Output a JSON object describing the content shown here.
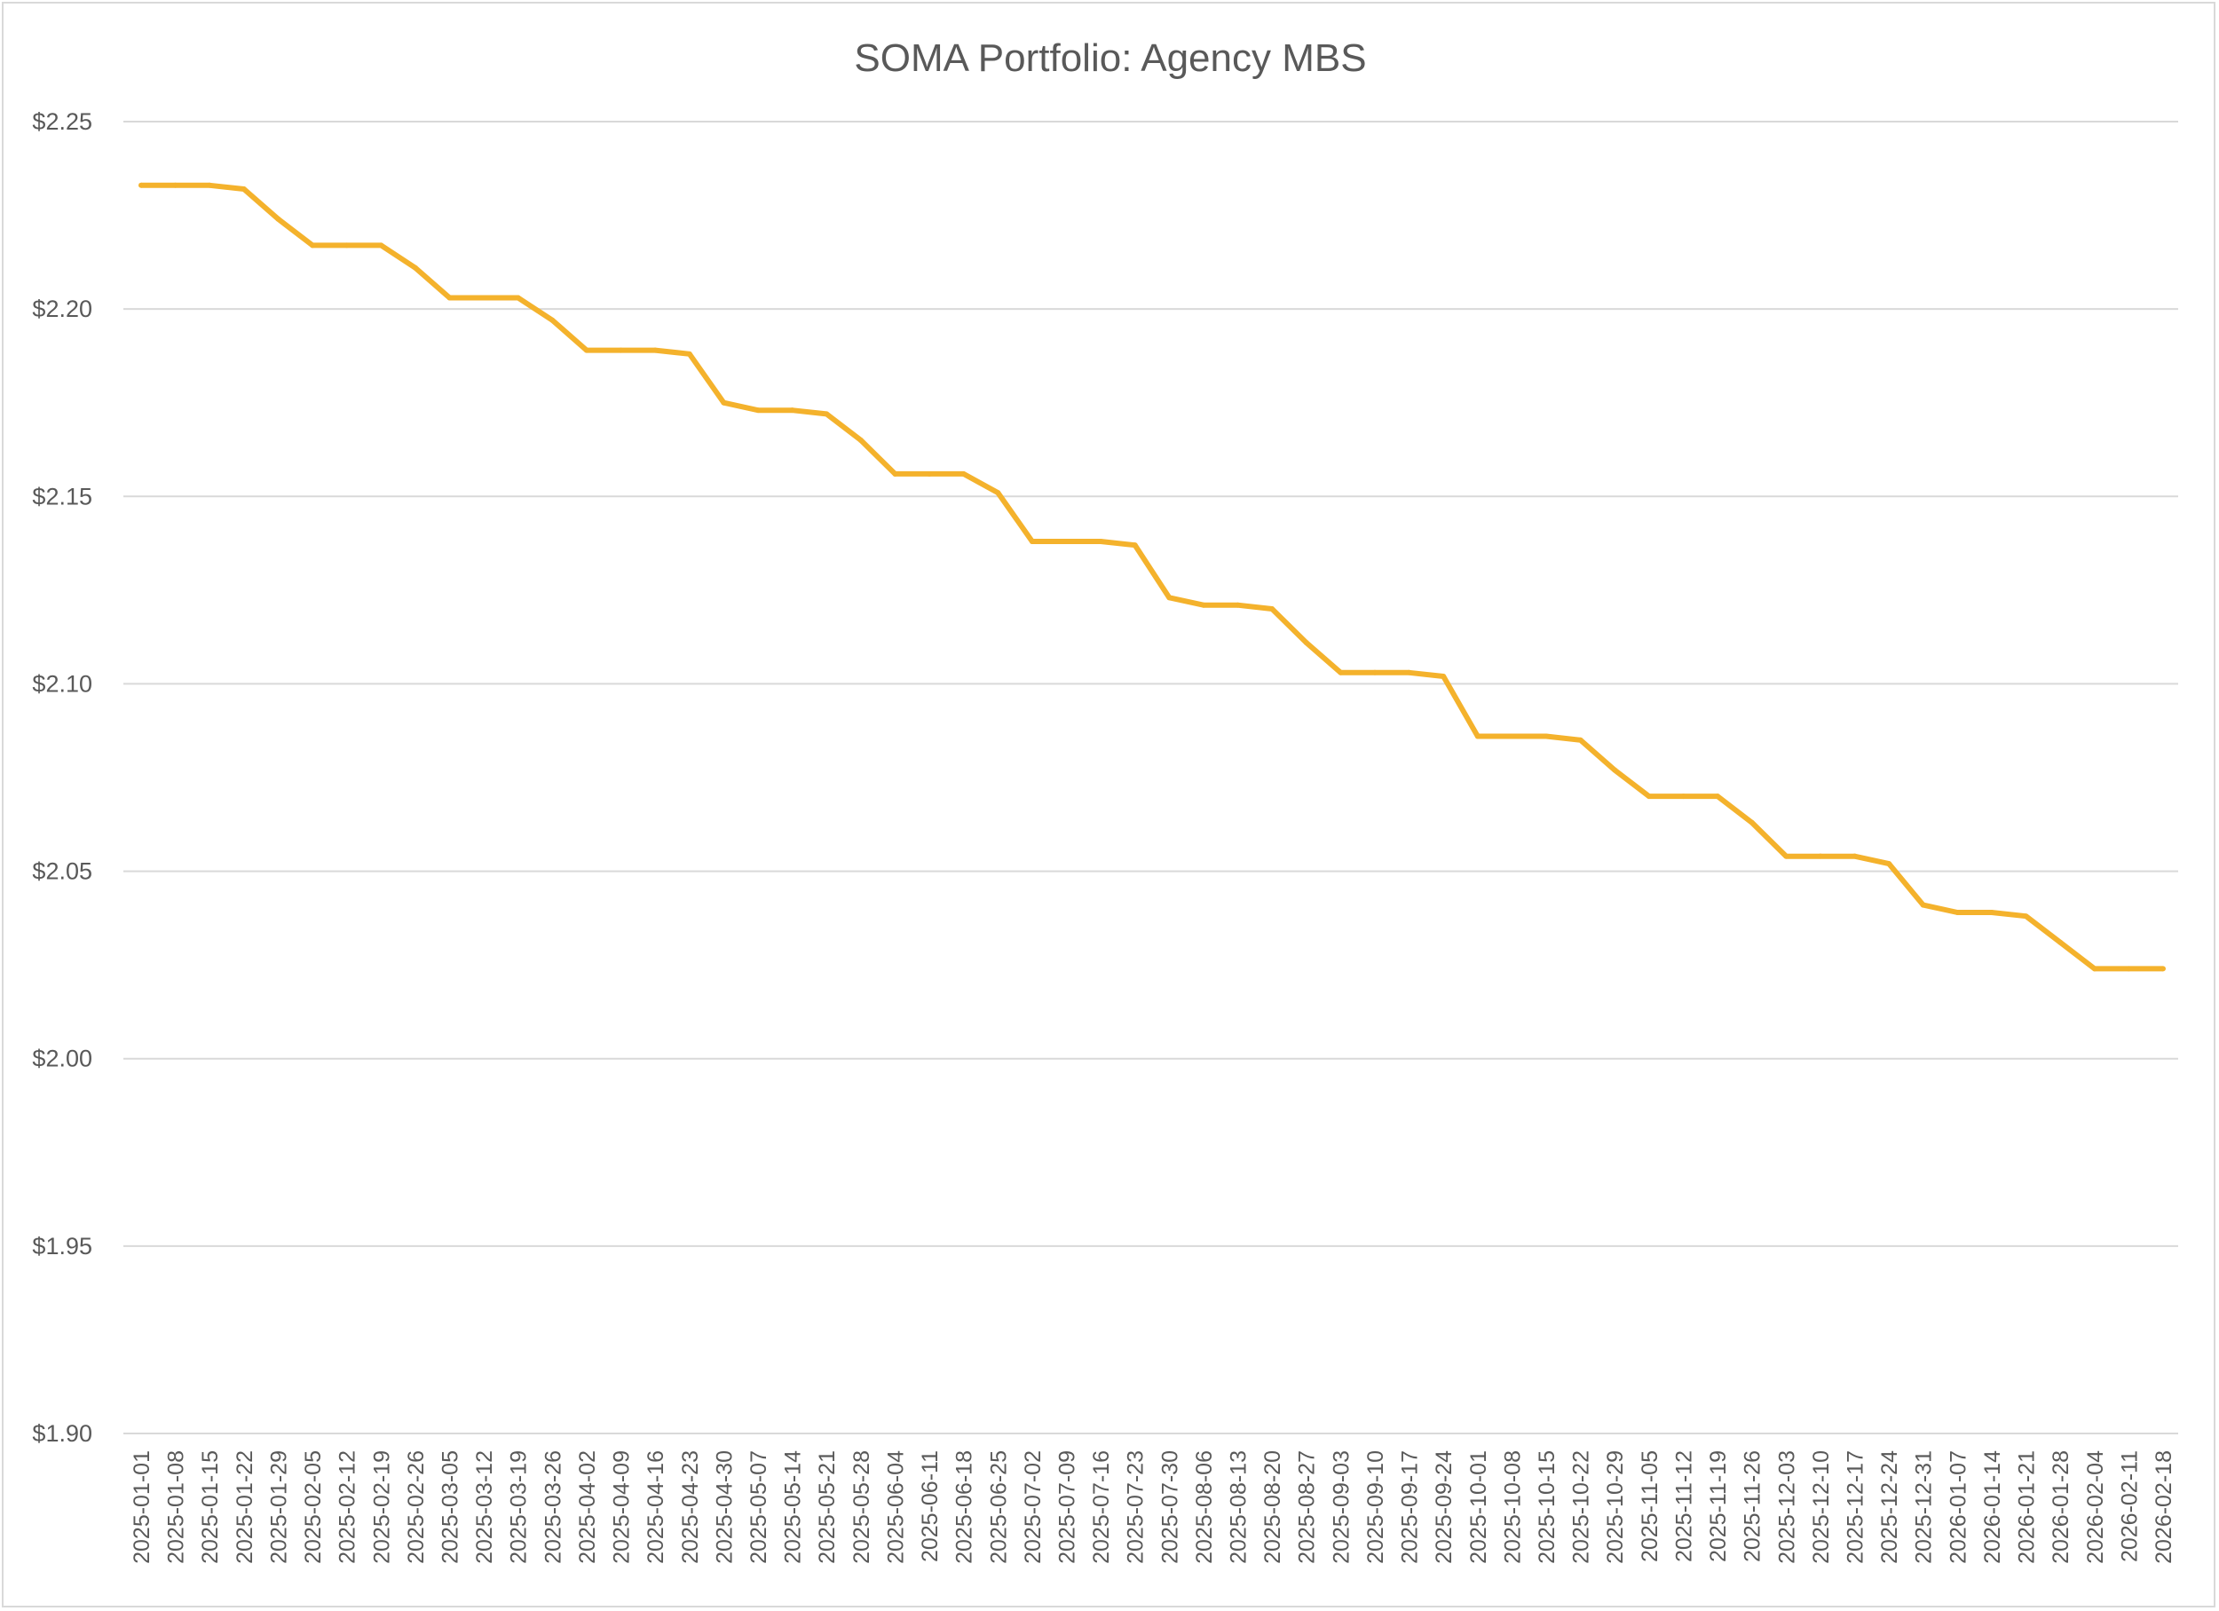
{
  "chart_data": {
    "type": "line",
    "title": "SOMA Portfolio: Agency MBS",
    "xlabel": "",
    "ylabel": "",
    "ylim": [
      1.9,
      2.25
    ],
    "yticks": [
      1.9,
      1.95,
      2.0,
      2.05,
      2.1,
      2.15,
      2.2,
      2.25
    ],
    "ytick_labels": [
      "$1.90",
      "$1.95",
      "$2.00",
      "$2.05",
      "$2.10",
      "$2.15",
      "$2.20",
      "$2.25"
    ],
    "grid": true,
    "legend": "none",
    "colors": {
      "line": "#F4B22C",
      "grid": "#d9d9d9",
      "text": "#595959",
      "border": "#d9d9d9"
    },
    "categories": [
      "2025-01-01",
      "2025-01-08",
      "2025-01-15",
      "2025-01-22",
      "2025-01-29",
      "2025-02-05",
      "2025-02-12",
      "2025-02-19",
      "2025-02-26",
      "2025-03-05",
      "2025-03-12",
      "2025-03-19",
      "2025-03-26",
      "2025-04-02",
      "2025-04-09",
      "2025-04-16",
      "2025-04-23",
      "2025-04-30",
      "2025-05-07",
      "2025-05-14",
      "2025-05-21",
      "2025-05-28",
      "2025-06-04",
      "2025-06-11",
      "2025-06-18",
      "2025-06-25",
      "2025-07-02",
      "2025-07-09",
      "2025-07-16",
      "2025-07-23",
      "2025-07-30",
      "2025-08-06",
      "2025-08-13",
      "2025-08-20",
      "2025-08-27",
      "2025-09-03",
      "2025-09-10",
      "2025-09-17",
      "2025-09-24",
      "2025-10-01",
      "2025-10-08",
      "2025-10-15",
      "2025-10-22",
      "2025-10-29",
      "2025-11-05",
      "2025-11-12",
      "2025-11-19",
      "2025-11-26",
      "2025-12-03",
      "2025-12-10",
      "2025-12-17",
      "2025-12-24",
      "2025-12-31",
      "2026-01-07",
      "2026-01-14",
      "2026-01-21",
      "2026-01-28",
      "2026-02-04",
      "2026-02-11",
      "2026-02-18"
    ],
    "series": [
      {
        "name": "Agency MBS",
        "values": [
          2.233,
          2.233,
          2.233,
          2.232,
          2.224,
          2.217,
          2.217,
          2.217,
          2.211,
          2.203,
          2.203,
          2.203,
          2.197,
          2.189,
          2.189,
          2.189,
          2.188,
          2.175,
          2.173,
          2.173,
          2.172,
          2.165,
          2.156,
          2.156,
          2.156,
          2.151,
          2.138,
          2.138,
          2.138,
          2.137,
          2.123,
          2.121,
          2.121,
          2.12,
          2.111,
          2.103,
          2.103,
          2.103,
          2.102,
          2.086,
          2.086,
          2.086,
          2.085,
          2.077,
          2.07,
          2.07,
          2.07,
          2.063,
          2.054,
          2.054,
          2.054,
          2.052,
          2.041,
          2.039,
          2.039,
          2.038,
          2.031,
          2.024,
          2.024,
          2.024
        ]
      }
    ]
  }
}
